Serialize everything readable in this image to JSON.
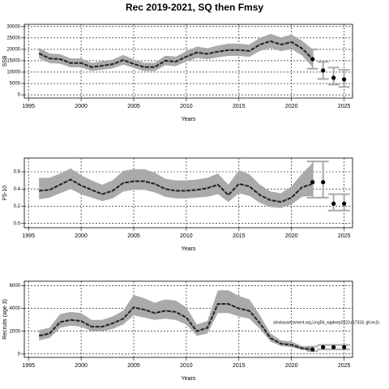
{
  "title": "Rec 2019-2021, SQ then Fmsy",
  "chart_data": [
    {
      "type": "line",
      "ylabel": "SSB",
      "xlabel": "Years",
      "x": [
        1996,
        1997,
        1998,
        1999,
        2000,
        2001,
        2002,
        2003,
        2004,
        2005,
        2006,
        2007,
        2008,
        2009,
        2010,
        2011,
        2012,
        2013,
        2014,
        2015,
        2016,
        2017,
        2018,
        2019,
        2020,
        2021,
        2022
      ],
      "values": [
        18200,
        16000,
        15700,
        14000,
        14000,
        12200,
        12800,
        13500,
        15300,
        13600,
        12200,
        12200,
        15000,
        14600,
        16800,
        18600,
        18000,
        19000,
        19700,
        19700,
        19300,
        22100,
        23600,
        22100,
        23200,
        20400,
        15700
      ],
      "lower": [
        16000,
        14000,
        13700,
        12100,
        12100,
        10500,
        11000,
        11700,
        13300,
        11800,
        10500,
        10500,
        13000,
        12600,
        14600,
        16200,
        15600,
        16500,
        17100,
        17100,
        16700,
        19300,
        20600,
        19200,
        20100,
        17300,
        12200
      ],
      "upper": [
        20700,
        18200,
        17900,
        16000,
        16000,
        14100,
        14800,
        15500,
        17500,
        15600,
        14100,
        14100,
        17200,
        16800,
        19200,
        21200,
        20500,
        21700,
        22500,
        22500,
        22100,
        25100,
        26800,
        25200,
        26500,
        23800,
        20000
      ],
      "proj_x": [
        2022,
        2023,
        2024,
        2025
      ],
      "proj_values": [
        15700,
        10700,
        7500,
        6800
      ],
      "proj_lower": [
        11500,
        7000,
        4500,
        3500
      ],
      "proj_upper": [
        20000,
        14500,
        12000,
        11000
      ],
      "line_color": "#222222",
      "band_color": "#aaaaaa",
      "point_color": "#000000",
      "errorbar_color": "#aaaaaa",
      "xlim": [
        1994.6,
        2025.8
      ],
      "ylim": [
        -1400,
        31000
      ],
      "xticks": [
        1995,
        2000,
        2005,
        2010,
        2015,
        2020,
        2025
      ],
      "yticks": [
        0,
        5000,
        10000,
        15000,
        20000,
        25000,
        30000
      ],
      "grid": true
    },
    {
      "type": "line",
      "ylabel": "F5-10",
      "xlabel": "Years",
      "x": [
        1996,
        1997,
        1998,
        1999,
        2000,
        2001,
        2002,
        2003,
        2004,
        2005,
        2006,
        2007,
        2008,
        2009,
        2010,
        2011,
        2012,
        2013,
        2014,
        2015,
        2016,
        2017,
        2018,
        2019,
        2020,
        2021,
        2022
      ],
      "values": [
        0.38,
        0.39,
        0.45,
        0.51,
        0.44,
        0.39,
        0.34,
        0.38,
        0.47,
        0.49,
        0.49,
        0.46,
        0.4,
        0.38,
        0.38,
        0.39,
        0.41,
        0.45,
        0.33,
        0.46,
        0.43,
        0.33,
        0.27,
        0.25,
        0.3,
        0.42,
        0.46
      ],
      "lower": [
        0.28,
        0.3,
        0.35,
        0.4,
        0.34,
        0.3,
        0.26,
        0.29,
        0.37,
        0.39,
        0.39,
        0.36,
        0.31,
        0.29,
        0.29,
        0.3,
        0.31,
        0.34,
        0.25,
        0.35,
        0.32,
        0.24,
        0.19,
        0.18,
        0.22,
        0.31,
        0.32
      ],
      "upper": [
        0.53,
        0.53,
        0.58,
        0.64,
        0.56,
        0.5,
        0.45,
        0.5,
        0.61,
        0.63,
        0.63,
        0.59,
        0.52,
        0.5,
        0.5,
        0.51,
        0.53,
        0.58,
        0.45,
        0.62,
        0.57,
        0.45,
        0.37,
        0.35,
        0.43,
        0.58,
        0.7
      ],
      "proj_x": [
        2022,
        2023,
        2024,
        2025
      ],
      "proj_values": [
        0.48,
        0.48,
        0.23,
        0.23
      ],
      "proj_lower": [
        0.3,
        0.3,
        0.15,
        0.15
      ],
      "proj_upper": [
        0.72,
        0.72,
        0.34,
        0.34
      ],
      "line_color": "#222222",
      "band_color": "#aaaaaa",
      "point_color": "#000000",
      "errorbar_color": "#aaaaaa",
      "xlim": [
        1994.6,
        2025.8
      ],
      "ylim": [
        -0.05,
        0.76
      ],
      "xticks": [
        1995,
        2000,
        2005,
        2010,
        2015,
        2020,
        2025
      ],
      "yticks": [
        {
          "value": 0,
          "label": "0.0"
        },
        0.2,
        0.4,
        0.6
      ],
      "grid": true
    },
    {
      "type": "line",
      "ylabel": "Recruits (age 3)",
      "xlabel": "Years",
      "x": [
        1996,
        1997,
        1998,
        1999,
        2000,
        2001,
        2002,
        2003,
        2004,
        2005,
        2006,
        2007,
        2008,
        2009,
        2010,
        2011,
        2012,
        2013,
        2014,
        2015,
        2016,
        2017,
        2018,
        2019,
        2020,
        2021,
        2022
      ],
      "values": [
        1600,
        1800,
        2800,
        3000,
        2900,
        2400,
        2400,
        2700,
        3100,
        4100,
        3900,
        3600,
        3800,
        3700,
        3200,
        2000,
        2300,
        4400,
        4400,
        4000,
        3800,
        2700,
        1400,
        900,
        800,
        500,
        400
      ],
      "lower": [
        1200,
        1400,
        2300,
        2500,
        2400,
        2000,
        2000,
        2200,
        2600,
        3400,
        3200,
        3000,
        3100,
        3000,
        2600,
        1600,
        1800,
        3600,
        3600,
        3300,
        3100,
        2200,
        1100,
        700,
        600,
        350,
        250
      ],
      "upper": [
        2100,
        2300,
        3500,
        3700,
        3600,
        3000,
        3000,
        3300,
        3800,
        5200,
        4900,
        4500,
        4800,
        4700,
        4100,
        2600,
        2900,
        5600,
        5600,
        5100,
        4800,
        3400,
        1800,
        1200,
        1100,
        700,
        650
      ],
      "proj_x": [
        2022,
        2023,
        2024,
        2025
      ],
      "proj_values": [
        400,
        600,
        600,
        600
      ],
      "proj_lower": [
        250,
        400,
        400,
        400
      ],
      "proj_upper": [
        650,
        800,
        800,
        800
      ],
      "annotation": "stockassessment.org,Ling5b_wgdeep2023,r17318, git:ec2c",
      "line_color": "#222222",
      "band_color": "#aaaaaa",
      "point_color": "#000000",
      "errorbar_color": "#aaaaaa",
      "xlim": [
        1994.6,
        2025.8
      ],
      "ylim": [
        -300,
        6400
      ],
      "xticks": [
        1995,
        2000,
        2005,
        2010,
        2015,
        2020,
        2025
      ],
      "yticks": [
        0,
        2000,
        4000,
        6000
      ],
      "grid": true
    }
  ]
}
